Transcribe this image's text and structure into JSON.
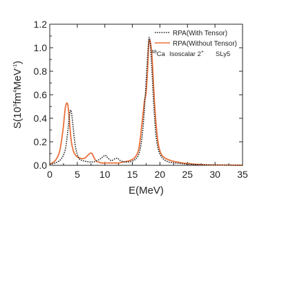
{
  "chart_data": {
    "type": "line",
    "title": "",
    "xlabel": "E(MeV)",
    "ylabel": {
      "prefix": "S(10",
      "exp1": "3",
      "mid": "fm",
      "exp2": "4",
      "unit": "MeV",
      "exp3": "-1",
      "close": ")"
    },
    "xlim": [
      0,
      35
    ],
    "ylim": [
      0,
      1.2
    ],
    "xticks": [
      "0",
      "5",
      "10",
      "15",
      "20",
      "25",
      "30",
      "35"
    ],
    "yticks": [
      "0.0",
      "0.2",
      "0.4",
      "0.6",
      "0.8",
      "1.0",
      "1.2"
    ],
    "legend_position": "top-right",
    "annotation": {
      "mass": "48",
      "element": "Ca",
      "text": "Isoscalar 2",
      "sup": "+",
      "force": "SLy5"
    },
    "series": [
      {
        "name": "RPA(With Tensor)",
        "color": "#222222",
        "style": "dotted",
        "x": [
          0,
          1,
          2,
          2.8,
          3.3,
          3.6,
          3.8,
          4.0,
          4.3,
          4.7,
          5.3,
          6,
          7,
          8,
          9,
          9.6,
          10.1,
          10.6,
          11.2,
          11.8,
          12.3,
          12.8,
          13.5,
          14.5,
          15.5,
          16.2,
          16.7,
          17.1,
          17.5,
          17.8,
          18.0,
          18.2,
          18.5,
          18.9,
          19.3,
          19.8,
          20.5,
          21.5,
          23,
          25,
          28,
          32,
          35
        ],
        "y": [
          0.01,
          0.02,
          0.05,
          0.13,
          0.3,
          0.43,
          0.47,
          0.43,
          0.3,
          0.15,
          0.06,
          0.04,
          0.03,
          0.03,
          0.05,
          0.07,
          0.085,
          0.06,
          0.04,
          0.055,
          0.06,
          0.04,
          0.03,
          0.03,
          0.05,
          0.1,
          0.22,
          0.42,
          0.72,
          0.95,
          1.08,
          1.05,
          0.85,
          0.5,
          0.25,
          0.12,
          0.06,
          0.03,
          0.02,
          0.01,
          0.005,
          0.002,
          0.001
        ]
      },
      {
        "name": "RPA(Without Tensor)",
        "color": "#e8703a",
        "style": "solid",
        "x": [
          0,
          1,
          1.8,
          2.4,
          2.8,
          3.1,
          3.35,
          3.6,
          3.9,
          4.3,
          4.8,
          5.5,
          6.3,
          7.0,
          7.5,
          7.8,
          8.2,
          8.7,
          9.5,
          10.5,
          11.5,
          12.5,
          13.5,
          14.5,
          15.5,
          16.2,
          16.8,
          17.2,
          17.5,
          17.8,
          18.0,
          18.3,
          18.6,
          19.0,
          19.4,
          19.8,
          20.3,
          21.0,
          22,
          23.5,
          25,
          28,
          32,
          35
        ],
        "y": [
          0.01,
          0.04,
          0.12,
          0.3,
          0.48,
          0.53,
          0.49,
          0.36,
          0.21,
          0.12,
          0.08,
          0.06,
          0.06,
          0.09,
          0.105,
          0.09,
          0.05,
          0.03,
          0.02,
          0.02,
          0.02,
          0.02,
          0.03,
          0.04,
          0.07,
          0.15,
          0.38,
          0.55,
          0.62,
          0.85,
          1.05,
          1.04,
          0.9,
          0.55,
          0.3,
          0.16,
          0.09,
          0.06,
          0.04,
          0.025,
          0.015,
          0.005,
          0.002,
          0.001
        ]
      }
    ]
  }
}
